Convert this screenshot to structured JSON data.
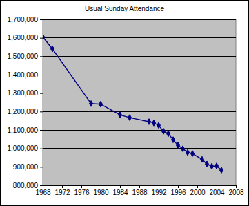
{
  "chart_data": {
    "type": "line",
    "title": "Usual Sunday Attendance",
    "x": [
      1968,
      1970,
      1978,
      1980,
      1984,
      1986,
      1990,
      1991,
      1992,
      1993,
      1994,
      1995,
      1996,
      1997,
      1998,
      1999,
      2001,
      2002,
      2003,
      2004,
      2005
    ],
    "series": [
      {
        "color": "#000080",
        "marker": "diamond",
        "values": [
          1605000,
          1540000,
          1243000,
          1240000,
          1182000,
          1167000,
          1145000,
          1138000,
          1125000,
          1093000,
          1080000,
          1047000,
          1017000,
          998000,
          978000,
          972000,
          940000,
          915000,
          903000,
          905000,
          882000
        ]
      }
    ],
    "xlim": [
      1968,
      2008
    ],
    "xticks": [
      1968,
      1972,
      1976,
      1980,
      1984,
      1988,
      1992,
      1996,
      2000,
      2004,
      2008
    ],
    "ylim": [
      800000,
      1700000
    ],
    "yticks": [
      {
        "value": 800000,
        "label": "800,000"
      },
      {
        "value": 900000,
        "label": "900,000"
      },
      {
        "value": 1000000,
        "label": "1,000,000"
      },
      {
        "value": 1100000,
        "label": "1,100,000"
      },
      {
        "value": 1200000,
        "label": "1,200,000"
      },
      {
        "value": 1300000,
        "label": "1,300,000"
      },
      {
        "value": 1400000,
        "label": "1,400,000"
      },
      {
        "value": 1500000,
        "label": "1,500,000"
      },
      {
        "value": 1600000,
        "label": "1,600,000"
      },
      {
        "value": 1700000,
        "label": "1,700,000"
      }
    ],
    "grid": true
  }
}
